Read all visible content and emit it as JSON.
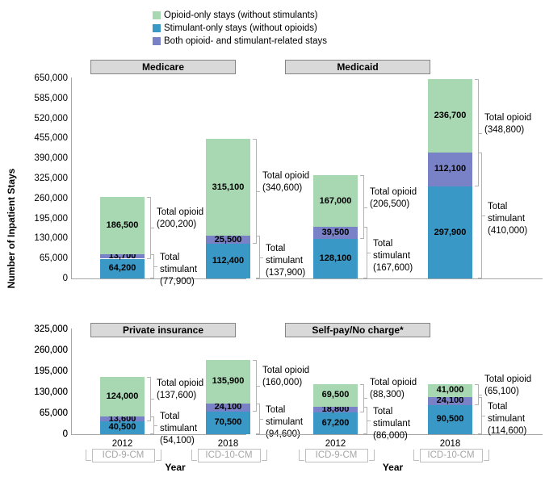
{
  "colors": {
    "opioid_only": "#a8d8b2",
    "stimulant_only": "#3998c6",
    "both": "#7a82c7",
    "header_fill": "#d9d9d9",
    "header_border": "#858585",
    "axis_line": "#a6a6a6",
    "brace": "#b3b3b3",
    "icd_text": "#a6a6a6",
    "icd_border": "#bfbfbf"
  },
  "legend": {
    "items": [
      {
        "series": "opioid_only",
        "label": "Opioid-only stays (without stimulants)"
      },
      {
        "series": "stimulant_only",
        "label": "Stimulant-only stays (without opioids)"
      },
      {
        "series": "both",
        "label": "Both opioid- and stimulant-related stays"
      }
    ]
  },
  "chart_data": {
    "type": "bar",
    "stacked": true,
    "grid": false,
    "ylabel": "Number of Inpatient Stays",
    "xlabel": "Year",
    "stack_order": [
      "stimulant_only",
      "both",
      "opioid_only"
    ],
    "annotation_labels": {
      "opioid": "Total opioid",
      "stimulant": "Total stimulant"
    },
    "panels": [
      {
        "title": "Medicare",
        "position": "top-left",
        "ylim": [
          0,
          650000
        ],
        "ytick_step": 65000,
        "yticks_shown": true,
        "show_x_labels": false,
        "bars": [
          {
            "year": "2012",
            "icd_label": "ICD-9-CM",
            "values": {
              "stimulant_only": 64200,
              "both": 13700,
              "opioid_only": 186500
            },
            "totals": {
              "opioid": 200200,
              "stimulant": 77900
            }
          },
          {
            "year": "2018",
            "icd_label": "ICD-10-CM",
            "values": {
              "stimulant_only": 112400,
              "both": 25500,
              "opioid_only": 315100
            },
            "totals": {
              "opioid": 340600,
              "stimulant": 137900
            }
          }
        ]
      },
      {
        "title": "Medicaid",
        "position": "top-right",
        "ylim": [
          0,
          650000
        ],
        "ytick_step": 65000,
        "yticks_shown": false,
        "show_x_labels": false,
        "bars": [
          {
            "year": "2012",
            "icd_label": "ICD-9-CM",
            "values": {
              "stimulant_only": 128100,
              "both": 39500,
              "opioid_only": 167000
            },
            "totals": {
              "opioid": 206500,
              "stimulant": 167600
            }
          },
          {
            "year": "2018",
            "icd_label": "ICD-10-CM",
            "values": {
              "stimulant_only": 297900,
              "both": 112100,
              "opioid_only": 236700
            },
            "totals": {
              "opioid": 348800,
              "stimulant": 410000
            }
          }
        ]
      },
      {
        "title": "Private insurance",
        "position": "bottom-left",
        "ylim": [
          0,
          325000
        ],
        "ytick_step": 65000,
        "yticks_shown": true,
        "show_x_labels": true,
        "bars": [
          {
            "year": "2012",
            "icd_label": "ICD-9-CM",
            "values": {
              "stimulant_only": 40500,
              "both": 13600,
              "opioid_only": 124000
            },
            "totals": {
              "opioid": 137600,
              "stimulant": 54100
            }
          },
          {
            "year": "2018",
            "icd_label": "ICD-10-CM",
            "values": {
              "stimulant_only": 70500,
              "both": 24100,
              "opioid_only": 135900
            },
            "totals": {
              "opioid": 160000,
              "stimulant": 94600
            }
          }
        ]
      },
      {
        "title": "Self-pay/No charge*",
        "position": "bottom-right",
        "ylim": [
          0,
          325000
        ],
        "ytick_step": 65000,
        "yticks_shown": true,
        "show_x_labels": true,
        "bars": [
          {
            "year": "2012",
            "icd_label": "ICD-9-CM",
            "values": {
              "stimulant_only": 67200,
              "both": 18800,
              "opioid_only": 69500
            },
            "totals": {
              "opioid": 88300,
              "stimulant": 86000
            }
          },
          {
            "year": "2018",
            "icd_label": "ICD-10-CM",
            "values": {
              "stimulant_only": 90500,
              "both": 24100,
              "opioid_only": 41000
            },
            "totals": {
              "opioid": 65100,
              "stimulant": 114600
            }
          }
        ]
      }
    ]
  }
}
